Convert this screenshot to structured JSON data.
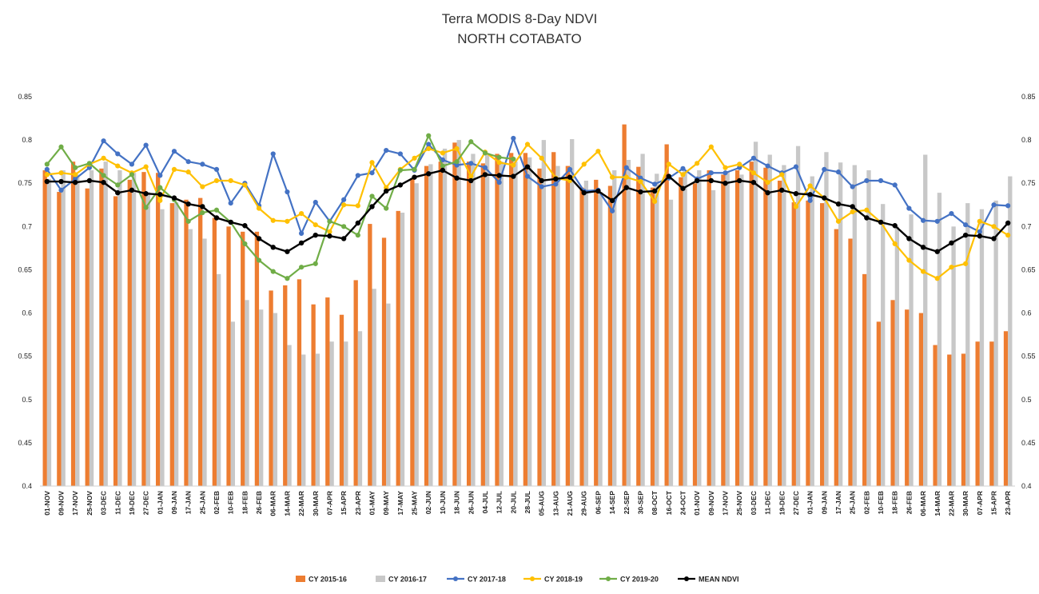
{
  "chart_data": {
    "type": "bar+line",
    "title": "Terra MODIS 8-Day  NDVI",
    "subtitle": "NORTH COTABATO",
    "ylim": [
      0.4,
      0.85
    ],
    "y_ticks": [
      "0.4",
      "0.45",
      "0.5",
      "0.55",
      "0.6",
      "0.65",
      "0.7",
      "0.75",
      "0.8",
      "0.85"
    ],
    "grid": "none",
    "legend_position": "bottom",
    "categories": [
      "01-NOV",
      "09-NOV",
      "17-NOV",
      "25-NOV",
      "03-DEC",
      "11-DEC",
      "19-DEC",
      "27-DEC",
      "01-JAN",
      "09-JAN",
      "17-JAN",
      "25-JAN",
      "02-FEB",
      "10-FEB",
      "18-FEB",
      "26-FEB",
      "06-MAR",
      "14-MAR",
      "22-MAR",
      "30-MAR",
      "07-APR",
      "15-APR",
      "23-APR",
      "01-MAY",
      "09-MAY",
      "17-MAY",
      "25-MAY",
      "02-JUN",
      "10-JUN",
      "18-JUN",
      "26-JUN",
      "04-JUL",
      "12-JUL",
      "20-JUL",
      "28-JUL",
      "05-AUG",
      "13-AUG",
      "21-AUG",
      "29-AUG",
      "06-SEP",
      "14-SEP",
      "22-SEP",
      "30-SEP",
      "08-OCT",
      "16-OCT",
      "24-OCT",
      "01-NOV",
      "09-NOV",
      "17-NOV",
      "25-NOV",
      "03-DEC",
      "11-DEC",
      "19-DEC",
      "27-DEC",
      "01-JAN",
      "09-JAN",
      "17-JAN",
      "25-JAN",
      "02-FEB",
      "10-FEB",
      "18-FEB",
      "26-FEB",
      "06-MAR",
      "14-MAR",
      "22-MAR",
      "30-MAR",
      "07-APR",
      "15-APR",
      "23-APR"
    ],
    "bar_series": [
      {
        "name": "CY 2015-16",
        "color": "#ED7D31",
        "values": [
          0.765,
          0.74,
          0.775,
          0.744,
          0.767,
          0.735,
          0.754,
          0.763,
          0.762,
          0.727,
          0.731,
          0.733,
          0.71,
          0.7,
          0.694,
          0.694,
          0.626,
          0.632,
          0.639,
          0.61,
          0.618,
          0.598,
          0.638,
          0.703,
          0.687,
          0.718,
          0.756,
          0.77,
          0.775,
          0.797,
          0.775,
          0.773,
          0.784,
          0.785,
          0.785,
          0.767,
          0.786,
          0.77,
          0.745,
          0.754,
          0.747,
          0.818,
          0.769,
          0.745,
          0.795,
          0.757,
          0.75,
          0.765,
          0.76,
          0.765,
          0.775,
          0.768,
          0.753,
          0.728,
          0.73,
          0.727,
          0.697,
          0.686,
          0.645,
          0.59,
          0.615,
          0.604,
          0.6,
          0.563,
          0.552,
          0.553,
          0.567,
          0.567,
          0.579
        ]
      },
      {
        "name": "CY 2016-17",
        "color": "#C8C8C8",
        "values": [
          0.755,
          0.765,
          0.76,
          0.765,
          0.775,
          0.765,
          0.762,
          0.74,
          0.72,
          0.728,
          0.697,
          0.686,
          0.645,
          0.59,
          0.615,
          0.604,
          0.6,
          0.563,
          0.552,
          0.553,
          0.567,
          0.567,
          0.579,
          0.628,
          0.611,
          0.716,
          0.75,
          0.772,
          0.79,
          0.8,
          0.784,
          0.785,
          0.775,
          0.775,
          0.78,
          0.8,
          0.77,
          0.801,
          0.753,
          0.74,
          0.765,
          0.777,
          0.784,
          0.761,
          0.731,
          0.764,
          0.765,
          0.742,
          0.763,
          0.76,
          0.798,
          0.783,
          0.771,
          0.793,
          0.758,
          0.786,
          0.774,
          0.771,
          0.765,
          0.726,
          0.7,
          0.714,
          0.783,
          0.739,
          0.7,
          0.727,
          0.72,
          0.73,
          0.758
        ]
      }
    ],
    "line_series": [
      {
        "name": "CY 2017-18",
        "color": "#4472C4",
        "values": [
          0.766,
          0.742,
          0.755,
          0.768,
          0.799,
          0.784,
          0.772,
          0.794,
          0.759,
          0.787,
          0.775,
          0.772,
          0.766,
          0.727,
          0.75,
          0.724,
          0.784,
          0.74,
          0.692,
          0.728,
          0.706,
          0.731,
          0.759,
          0.762,
          0.788,
          0.784,
          0.765,
          0.795,
          0.777,
          0.771,
          0.773,
          0.768,
          0.751,
          0.802,
          0.758,
          0.746,
          0.749,
          0.766,
          0.741,
          0.742,
          0.718,
          0.768,
          0.756,
          0.749,
          0.756,
          0.767,
          0.755,
          0.762,
          0.762,
          0.768,
          0.779,
          0.77,
          0.762,
          0.769,
          0.73,
          0.766,
          0.763,
          0.746,
          0.753,
          0.753,
          0.748,
          0.721,
          0.707,
          0.706,
          0.715,
          0.702,
          0.694,
          0.725,
          0.724
        ]
      },
      {
        "name": "CY 2018-19",
        "color": "#FFC000",
        "values": [
          0.76,
          0.762,
          0.76,
          0.772,
          0.779,
          0.77,
          0.762,
          0.769,
          0.73,
          0.766,
          0.763,
          0.746,
          0.753,
          0.753,
          0.748,
          0.721,
          0.707,
          0.706,
          0.715,
          0.702,
          0.694,
          0.725,
          0.724,
          0.774,
          0.745,
          0.766,
          0.779,
          0.79,
          0.785,
          0.79,
          0.758,
          0.786,
          0.774,
          0.771,
          0.795,
          0.779,
          0.756,
          0.753,
          0.772,
          0.787,
          0.757,
          0.757,
          0.752,
          0.729,
          0.772,
          0.76,
          0.773,
          0.792,
          0.768,
          0.772,
          0.762,
          0.751,
          0.76,
          0.723,
          0.747,
          0.733,
          0.706,
          0.717,
          0.719,
          0.705,
          0.68,
          0.661,
          0.648,
          0.64,
          0.653,
          0.657,
          0.706,
          0.7,
          0.69
        ]
      },
      {
        "name": "CY 2019-20",
        "color": "#70AD47",
        "values": [
          0.772,
          0.792,
          0.768,
          0.773,
          0.759,
          0.748,
          0.76,
          0.722,
          0.745,
          0.731,
          0.706,
          0.716,
          0.719,
          0.705,
          0.68,
          0.661,
          0.648,
          0.64,
          0.653,
          0.657,
          0.706,
          0.7,
          0.69,
          0.735,
          0.721,
          0.765,
          0.766,
          0.805,
          0.77,
          0.775,
          0.798,
          0.785,
          0.78,
          0.778
        ]
      },
      {
        "name": "MEAN NDVI",
        "color": "#000000",
        "values": [
          0.752,
          0.752,
          0.751,
          0.753,
          0.751,
          0.739,
          0.742,
          0.738,
          0.737,
          0.733,
          0.726,
          0.723,
          0.71,
          0.705,
          0.701,
          0.686,
          0.676,
          0.671,
          0.681,
          0.69,
          0.689,
          0.686,
          0.704,
          0.723,
          0.741,
          0.748,
          0.757,
          0.761,
          0.765,
          0.756,
          0.753,
          0.76,
          0.759,
          0.758,
          0.769,
          0.753,
          0.755,
          0.757,
          0.739,
          0.741,
          0.73,
          0.745,
          0.74,
          0.741,
          0.758,
          0.744,
          0.753,
          0.753,
          0.75,
          0.753,
          0.751,
          0.739,
          0.742,
          0.738,
          0.737,
          0.733,
          0.726,
          0.723,
          0.71,
          0.705,
          0.701,
          0.686,
          0.676,
          0.671,
          0.681,
          0.69,
          0.689,
          0.686,
          0.704
        ]
      }
    ]
  }
}
